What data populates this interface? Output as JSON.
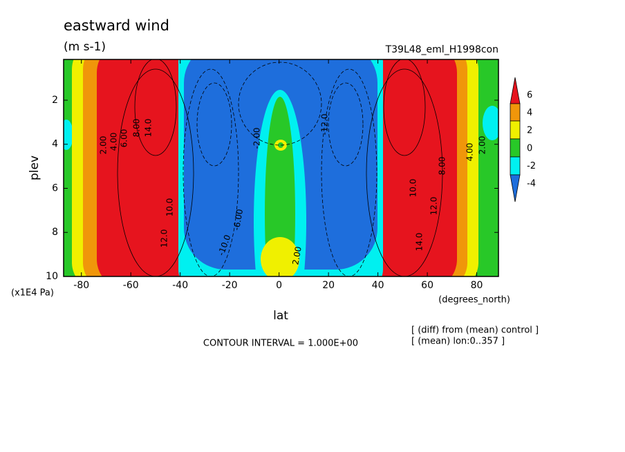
{
  "chart_data": {
    "type": "contour",
    "title": "eastward wind",
    "subtitle": "(m s-1)",
    "run_label": "T39L48_eml_H1998con",
    "x_label": "lat",
    "x_unit": "(degrees_north)",
    "y_label": "plev",
    "y_unit": "(x1E4 Pa)",
    "contour_interval": "CONTOUR INTERVAL = 1.000E+00",
    "notes": [
      "[ (diff) from (mean) control ]",
      "[ (mean) lon:0..357 ]"
    ],
    "xlim": [
      -87.2,
      88.8
    ],
    "xticks": [
      -80,
      -60,
      -40,
      -20,
      0,
      20,
      40,
      60,
      80
    ],
    "ylim": [
      0.15,
      10
    ],
    "yticks": [
      2,
      4,
      6,
      8,
      10
    ],
    "colorbar": {
      "ticks": [
        6,
        4,
        2,
        0,
        -2,
        -4
      ],
      "colors": [
        "#e6141e",
        "#f0960a",
        "#f0f000",
        "#28c828",
        "#00f0f0",
        "#1e6edc"
      ]
    },
    "contour_labels": [
      "2.00",
      "4.00",
      "6.00",
      "8.00",
      "12.0",
      "14.0",
      "10.0",
      "-10.0",
      "-6.00",
      "-2.00",
      "12.0",
      "10.0",
      "8.00",
      "14.0",
      "2.00",
      "4.00",
      "-12.0",
      "2.00"
    ]
  }
}
